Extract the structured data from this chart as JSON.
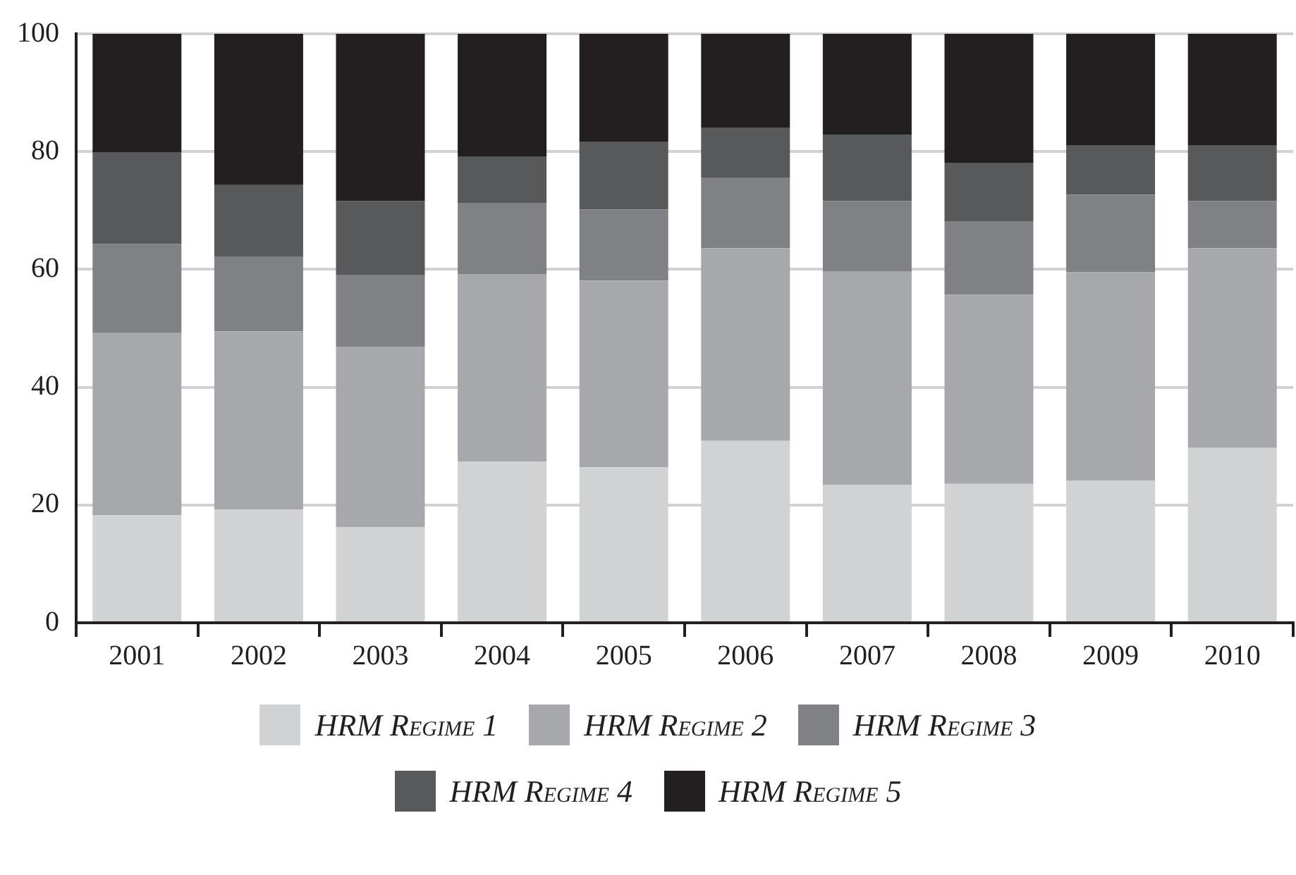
{
  "chart_data": {
    "type": "bar",
    "stacked": true,
    "categories": [
      "2001",
      "2002",
      "2003",
      "2004",
      "2005",
      "2006",
      "2007",
      "2008",
      "2009",
      "2010"
    ],
    "series": [
      {
        "name": "HRM Regime 1",
        "color": "#d1d2d4",
        "values": [
          18.3,
          19.2,
          16.2,
          27.4,
          26.4,
          30.9,
          23.4,
          23.6,
          24.1,
          29.7
        ]
      },
      {
        "name": "HRM Regime 2",
        "color": "#a7a8ac",
        "values": [
          30.9,
          30.3,
          30.7,
          31.8,
          31.7,
          32.7,
          36.3,
          32.1,
          35.4,
          33.9
        ]
      },
      {
        "name": "HRM Regime 3",
        "color": "#808184",
        "values": [
          15.1,
          12.7,
          12.1,
          12.1,
          12.1,
          11.9,
          11.9,
          12.4,
          13.2,
          8.0
        ]
      },
      {
        "name": "HRM Regime 4",
        "color": "#58595b",
        "values": [
          15.6,
          12.1,
          12.6,
          7.9,
          11.4,
          8.6,
          11.3,
          10.0,
          8.4,
          9.5
        ]
      },
      {
        "name": "HRM Regime 5",
        "color": "#231f20",
        "values": [
          20.1,
          25.7,
          28.4,
          20.8,
          18.4,
          15.9,
          17.1,
          21.9,
          18.9,
          18.9
        ]
      }
    ],
    "ylim": [
      0,
      100
    ],
    "yticks": [
      0,
      20,
      40,
      60,
      80,
      100
    ],
    "grid": "y",
    "legend": "bottom"
  }
}
